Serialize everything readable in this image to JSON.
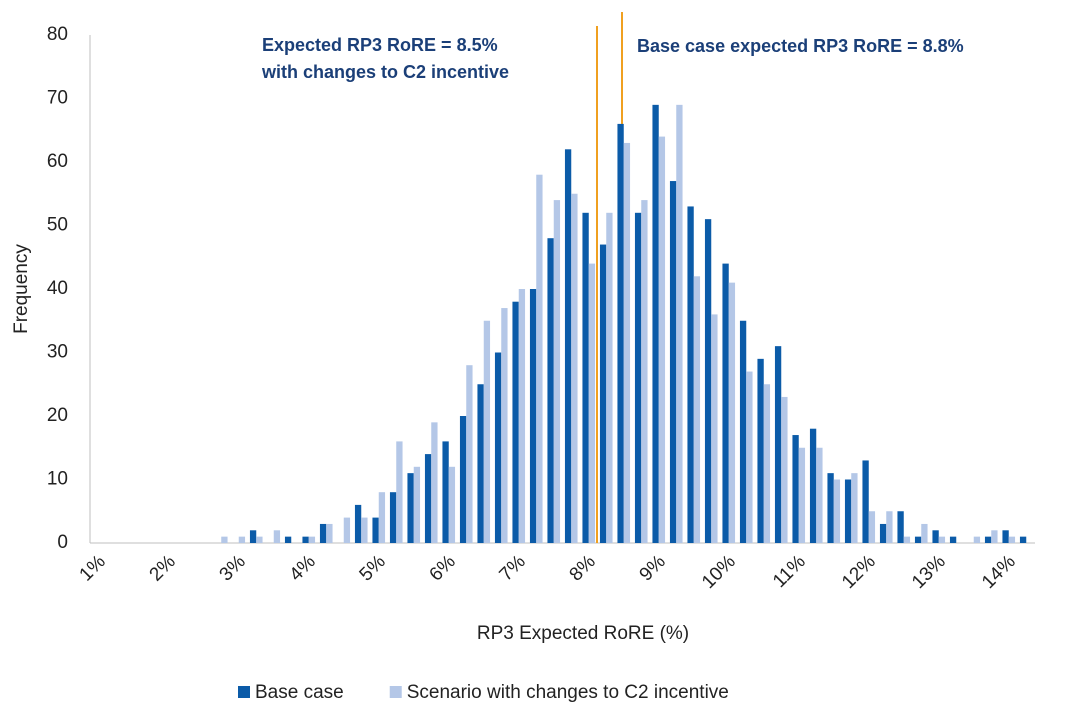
{
  "chart_data": {
    "type": "bar",
    "y_label": "Frequency",
    "x_label": "RP3 Expected RoRE (%)",
    "annotations": [
      "Expected RP3 RoRE = 8.5%",
      "with changes to C2 incentive",
      "Base case expected RP3 RoRE = 8.8%"
    ],
    "categories": [
      "1%",
      null,
      null,
      null,
      "2%",
      null,
      null,
      null,
      "3%",
      null,
      null,
      null,
      "4%",
      null,
      null,
      null,
      "5%",
      null,
      null,
      null,
      "6%",
      null,
      null,
      null,
      "7%",
      null,
      null,
      null,
      "8%",
      null,
      null,
      null,
      "9%",
      null,
      null,
      null,
      "10%",
      null,
      null,
      null,
      "11%",
      null,
      null,
      null,
      "12%",
      null,
      null,
      null,
      "13%",
      null,
      null,
      null,
      "14%",
      null
    ],
    "series": [
      {
        "name": "Base case",
        "color": "#0b5ba8",
        "values": [
          0,
          0,
          0,
          0,
          0,
          0,
          0,
          0,
          0,
          2,
          0,
          1,
          1,
          3,
          0,
          6,
          4,
          8,
          11,
          14,
          16,
          20,
          25,
          30,
          38,
          40,
          48,
          62,
          52,
          47,
          66,
          52,
          69,
          57,
          53,
          51,
          44,
          35,
          29,
          31,
          17,
          18,
          11,
          10,
          13,
          3,
          5,
          1,
          2,
          1,
          0,
          1,
          2,
          1
        ]
      },
      {
        "name": "Scenario with changes to C2 incentive",
        "color": "#b4c7e7",
        "values": [
          0,
          0,
          0,
          0,
          0,
          0,
          0,
          1,
          1,
          1,
          2,
          0,
          1,
          3,
          4,
          4,
          8,
          16,
          12,
          19,
          12,
          28,
          35,
          37,
          40,
          58,
          54,
          55,
          44,
          52,
          63,
          54,
          64,
          69,
          42,
          36,
          41,
          27,
          25,
          23,
          15,
          15,
          10,
          11,
          5,
          5,
          1,
          3,
          1,
          0,
          1,
          2,
          1,
          0
        ]
      }
    ],
    "ylim": [
      0,
      80
    ],
    "yticks": [
      0,
      10,
      20,
      30,
      40,
      50,
      60,
      70,
      80
    ],
    "grid": false
  }
}
